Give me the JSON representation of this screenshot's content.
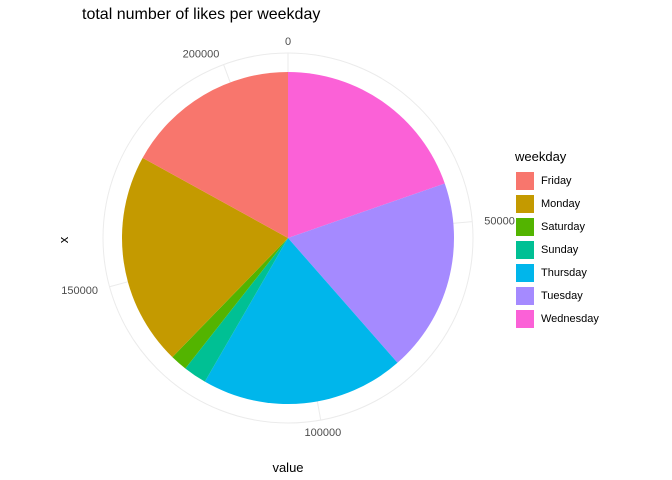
{
  "chart_data": {
    "type": "pie",
    "title": "total number of likes per weekday",
    "xlabel": "value",
    "ylabel": "x",
    "legend": {
      "title": "weekday",
      "position": "right"
    },
    "grid": true,
    "categories": [
      "Friday",
      "Monday",
      "Saturday",
      "Sunday",
      "Thursday",
      "Tuesday",
      "Wednesday"
    ],
    "values": [
      36000,
      44000,
      3500,
      4800,
      42000,
      40000,
      41700
    ],
    "colors": [
      "#F8766D",
      "#C49A00",
      "#53B400",
      "#00C094",
      "#00B6EB",
      "#A58AFF",
      "#FB61D7"
    ],
    "tick_values": [
      0,
      50000,
      100000,
      150000,
      200000
    ],
    "tick_labels": [
      "0",
      "50000",
      "100000",
      "150000",
      "200000"
    ],
    "start_category": "Wednesday",
    "direction": "clockwise"
  }
}
